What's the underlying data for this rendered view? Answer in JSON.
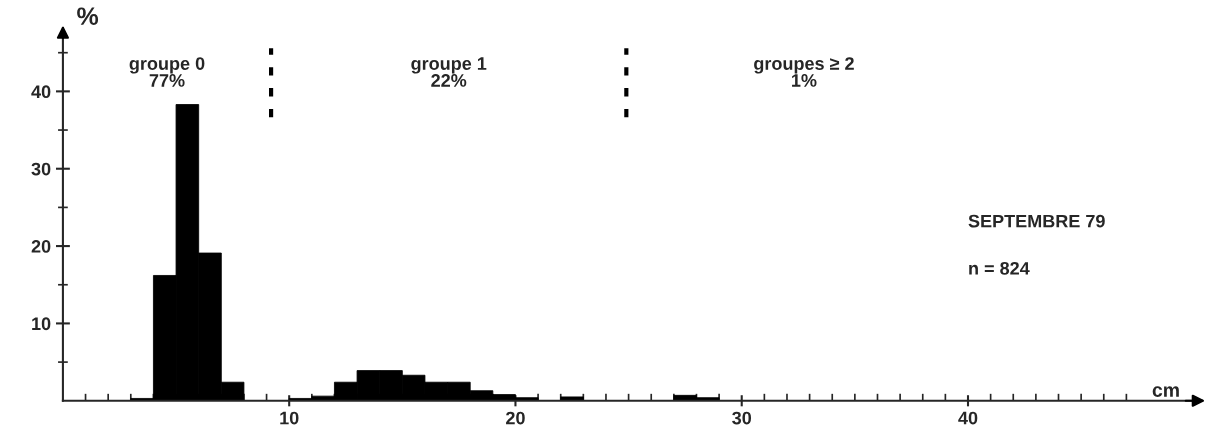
{
  "chart_data": {
    "type": "histogram",
    "xlabel": "cm",
    "ylabel": "%",
    "bins": [
      3,
      4,
      5,
      6,
      7,
      8,
      9,
      10,
      11,
      12,
      13,
      14,
      15,
      16,
      17,
      18,
      19,
      20,
      21,
      22,
      23,
      24,
      25,
      26,
      27,
      28,
      29
    ],
    "values": [
      0.3,
      16.2,
      38.3,
      19.1,
      2.4,
      0,
      0,
      0.3,
      0.6,
      2.4,
      3.9,
      3.9,
      3.3,
      2.4,
      2.4,
      1.3,
      0.8,
      0.4,
      0,
      0.5,
      0,
      0,
      0,
      0,
      0.7,
      0.4
    ],
    "color": "#000000",
    "xlim": [
      0,
      50
    ],
    "ylim": [
      0,
      47
    ],
    "xticks": [
      {
        "value": 1,
        "label": null
      },
      {
        "value": 2,
        "label": null
      },
      {
        "value": 3,
        "label": null
      },
      {
        "value": 4,
        "label": null
      },
      {
        "value": 5,
        "label": null
      },
      {
        "value": 6,
        "label": null
      },
      {
        "value": 7,
        "label": null
      },
      {
        "value": 8,
        "label": null
      },
      {
        "value": 9,
        "label": null
      },
      10,
      {
        "value": 11,
        "label": null
      },
      {
        "value": 12,
        "label": null
      },
      {
        "value": 13,
        "label": null
      },
      {
        "value": 14,
        "label": null
      },
      {
        "value": 15,
        "label": null
      },
      {
        "value": 16,
        "label": null
      },
      {
        "value": 17,
        "label": null
      },
      {
        "value": 18,
        "label": null
      },
      {
        "value": 19,
        "label": null
      },
      20,
      {
        "value": 21,
        "label": null
      },
      {
        "value": 22,
        "label": null
      },
      {
        "value": 23,
        "label": null
      },
      {
        "value": 24,
        "label": null
      },
      {
        "value": 25,
        "label": null
      },
      {
        "value": 26,
        "label": null
      },
      {
        "value": 27,
        "label": null
      },
      {
        "value": 28,
        "label": null
      },
      {
        "value": 29,
        "label": null
      },
      30,
      {
        "value": 31,
        "label": null
      },
      {
        "value": 32,
        "label": null
      },
      {
        "value": 33,
        "label": null
      },
      {
        "value": 34,
        "label": null
      },
      {
        "value": 35,
        "label": null
      },
      {
        "value": 36,
        "label": null
      },
      {
        "value": 37,
        "label": null
      },
      {
        "value": 38,
        "label": null
      },
      {
        "value": 39,
        "label": null
      },
      40,
      {
        "value": 41,
        "label": null
      },
      {
        "value": 42,
        "label": null
      },
      {
        "value": 43,
        "label": null
      },
      {
        "value": 44,
        "label": null
      },
      {
        "value": 45,
        "label": null
      },
      {
        "value": 46,
        "label": null
      },
      {
        "value": 47,
        "label": null
      }
    ],
    "yticks": [
      {
        "value": 5,
        "label": null
      },
      10,
      {
        "value": 15,
        "label": null
      },
      20,
      {
        "value": 25,
        "label": null
      },
      30,
      {
        "value": 35,
        "label": null
      },
      40,
      {
        "value": 45,
        "label": null
      }
    ],
    "ref_lines": [
      {
        "axis": "x",
        "value": 9.2,
        "line_style": "dotted",
        "color": "#000000"
      },
      {
        "axis": "x",
        "value": 24.9,
        "line_style": "dotted",
        "color": "#000000"
      }
    ],
    "annotations": [
      "groupe 0\n77%",
      "groupe 1\n22%",
      "groupes ≥ 2\n1%",
      "SEPTEMBRE 79",
      "n = 824"
    ],
    "grid": false
  }
}
